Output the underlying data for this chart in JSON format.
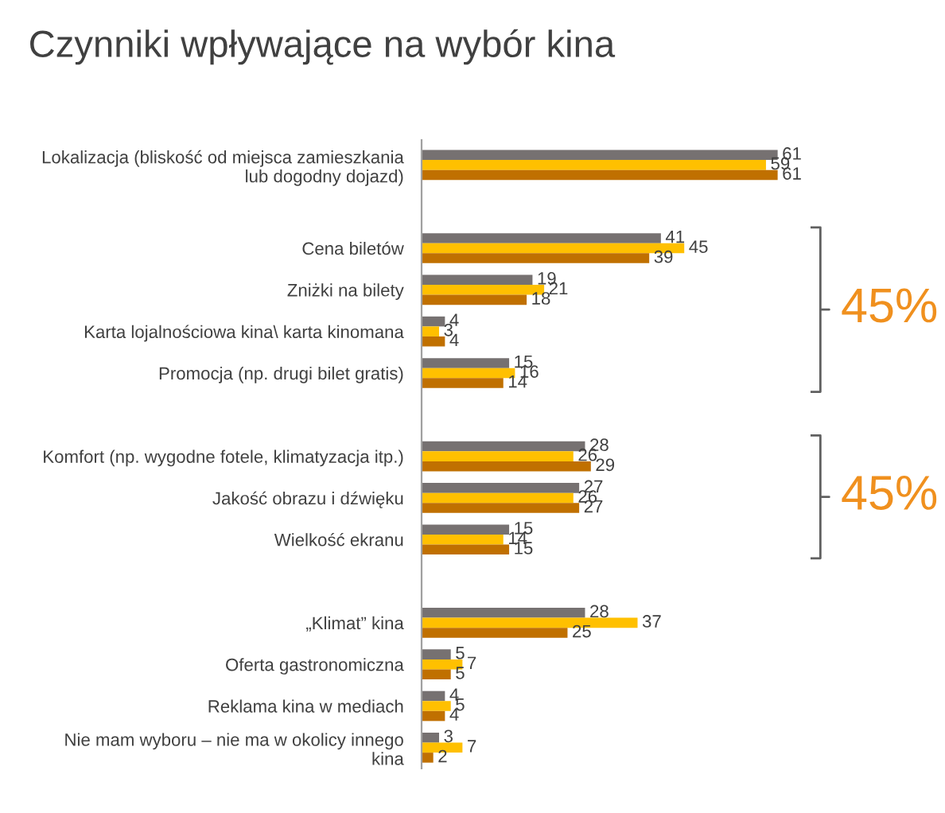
{
  "chart_data": {
    "type": "bar",
    "orientation": "horizontal",
    "title": "Czynniki wpływające na wybór kina",
    "categories": [
      "Lokalizacja (bliskość od miejsca zamieszkania\nlub dogodny dojazd)",
      null,
      "Cena biletów",
      "Zniżki na bilety",
      "Karta lojalnościowa kina\\ karta kinomana",
      "Promocja (np. drugi bilet gratis)",
      null,
      "Komfort (np. wygodne fotele, klimatyzacja itp.)",
      "Jakość obrazu i dźwięku",
      "Wielkość ekranu",
      null,
      "„Klimat” kina",
      "Oferta gastronomiczna",
      "Reklama kina w mediach",
      "Nie mam wyboru – nie ma w okolicy innego\nkina"
    ],
    "series": [
      {
        "color": "#767171",
        "values": [
          61,
          null,
          41,
          19,
          4,
          15,
          null,
          28,
          27,
          15,
          null,
          28,
          5,
          4,
          3
        ]
      },
      {
        "color": "#ffc000",
        "values": [
          59,
          null,
          45,
          21,
          3,
          16,
          null,
          26,
          26,
          14,
          null,
          37,
          7,
          5,
          7
        ]
      },
      {
        "color": "#c07000",
        "values": [
          61,
          null,
          39,
          18,
          4,
          14,
          null,
          29,
          27,
          15,
          null,
          25,
          5,
          4,
          2
        ]
      }
    ],
    "data_labels": true,
    "legend": false,
    "grid": false,
    "annotations": [
      "45%",
      "45%"
    ]
  }
}
